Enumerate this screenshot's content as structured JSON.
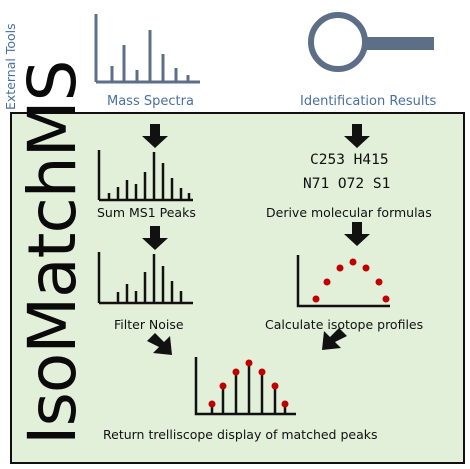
{
  "external_tools_label": "External Tools",
  "title": "IsoMatchMS",
  "top": {
    "mass_spectra_label": "Mass Spectra",
    "identification_results_label": "Identification Results"
  },
  "formula": {
    "line1": "C253 H415",
    "line2": "N71 O72 S1"
  },
  "steps": {
    "sum_ms1": "Sum MS1 Peaks",
    "filter_noise": "Filter Noise",
    "derive_formulas": "Derive molecular formulas",
    "calc_isotope": "Calculate isotope profiles",
    "return_display": "Return trelliscope display of matched peaks"
  },
  "colors": {
    "panel_bg": "#e2efd9",
    "panel_border": "#111111",
    "accent_blue": "#5d6f86",
    "peak_dot": "#c00000"
  }
}
